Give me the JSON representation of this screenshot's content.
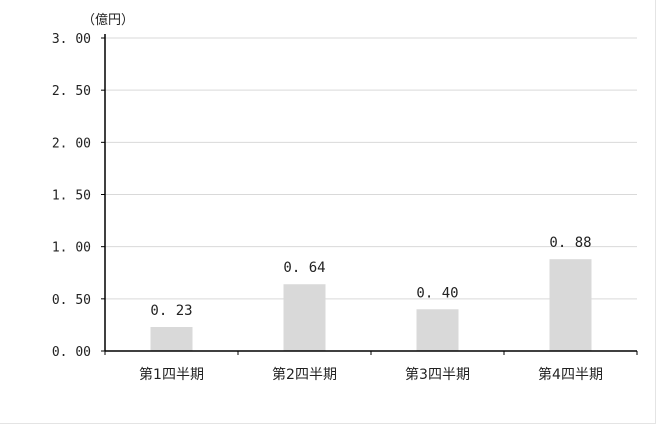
{
  "chart_data": {
    "type": "bar",
    "unit_label": "（億円）",
    "categories": [
      "第1四半期",
      "第2四半期",
      "第3四半期",
      "第4四半期"
    ],
    "values": [
      0.23,
      0.64,
      0.4,
      0.88
    ],
    "data_labels": [
      "0. 23",
      "0. 64",
      "0. 40",
      "0. 88"
    ],
    "ylim": [
      0,
      3.0
    ],
    "yticks": [
      0.0,
      0.5,
      1.0,
      1.5,
      2.0,
      2.5,
      3.0
    ],
    "ytick_labels": [
      "0. 00",
      "0. 50",
      "1. 00",
      "1. 50",
      "2. 00",
      "2. 50",
      "3. 00"
    ],
    "grid": true,
    "legend": "none",
    "bar_color": "#d9d9d9",
    "grid_color": "#d9d9d9",
    "axis_color": "#000000"
  }
}
